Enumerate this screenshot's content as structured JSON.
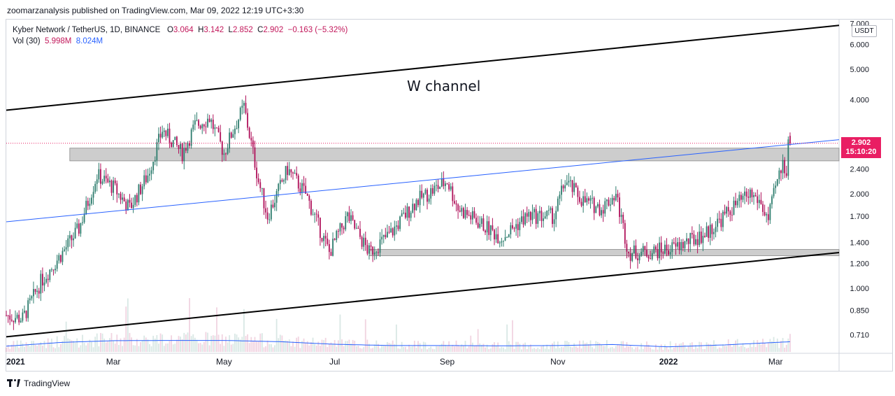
{
  "header": {
    "publish_text": "zoomarzanalysis published on TradingView.com, Mar 09, 2022 12:19 UTC+3:30"
  },
  "legend": {
    "symbol": "Kyber Network / TetherUS, 1D, BINANCE",
    "o_label": "O",
    "o_value": "3.064",
    "h_label": "H",
    "h_value": "3.142",
    "l_label": "L",
    "l_value": "2.852",
    "c_label": "C",
    "c_value": "2.902",
    "change": "−0.163 (−5.32%)",
    "vol_label": "Vol (30)",
    "vol_value": "5.998M",
    "vol_ma": "8.024M"
  },
  "price_axis": {
    "unit": "USDT",
    "last_price": "2.902",
    "countdown": "15:10:20"
  },
  "footer": {
    "brand": "TradingView"
  },
  "chart_data": {
    "type": "candlestick",
    "title": "",
    "annotation": "W channel",
    "y_scale": "log",
    "ylim": [
      0.62,
      7.2
    ],
    "y_ticks": [
      "0.710",
      "0.850",
      "1.000",
      "1.200",
      "1.400",
      "1.700",
      "2.000",
      "2.400",
      "2.900",
      "4.000",
      "5.000",
      "6.000",
      "7.000"
    ],
    "x_tick_labels": [
      "2021",
      "Mar",
      "May",
      "Jul",
      "Sep",
      "Nov",
      "2022",
      "Mar"
    ],
    "x_range": [
      "2021-01-01",
      "2022-04-05"
    ],
    "close_series": [
      {
        "date": "2021-01-01",
        "value": 0.82
      },
      {
        "date": "2021-01-10",
        "value": 0.8
      },
      {
        "date": "2021-01-20",
        "value": 1.05
      },
      {
        "date": "2021-02-01",
        "value": 1.3
      },
      {
        "date": "2021-02-10",
        "value": 1.55
      },
      {
        "date": "2021-02-20",
        "value": 2.3
      },
      {
        "date": "2021-03-01",
        "value": 2.1
      },
      {
        "date": "2021-03-10",
        "value": 1.8
      },
      {
        "date": "2021-03-20",
        "value": 2.3
      },
      {
        "date": "2021-03-28",
        "value": 3.2
      },
      {
        "date": "2021-04-08",
        "value": 2.7
      },
      {
        "date": "2021-04-15",
        "value": 3.3
      },
      {
        "date": "2021-04-23",
        "value": 3.5
      },
      {
        "date": "2021-05-01",
        "value": 2.7
      },
      {
        "date": "2021-05-05",
        "value": 3.1
      },
      {
        "date": "2021-05-12",
        "value": 3.8
      },
      {
        "date": "2021-05-20",
        "value": 2.2
      },
      {
        "date": "2021-05-25",
        "value": 1.7
      },
      {
        "date": "2021-06-05",
        "value": 2.4
      },
      {
        "date": "2021-06-15",
        "value": 2.0
      },
      {
        "date": "2021-06-28",
        "value": 1.3
      },
      {
        "date": "2021-07-08",
        "value": 1.7
      },
      {
        "date": "2021-07-20",
        "value": 1.3
      },
      {
        "date": "2021-08-01",
        "value": 1.5
      },
      {
        "date": "2021-08-15",
        "value": 1.9
      },
      {
        "date": "2021-09-01",
        "value": 2.2
      },
      {
        "date": "2021-09-07",
        "value": 1.8
      },
      {
        "date": "2021-09-20",
        "value": 1.6
      },
      {
        "date": "2021-10-01",
        "value": 1.45
      },
      {
        "date": "2021-10-15",
        "value": 1.7
      },
      {
        "date": "2021-10-30",
        "value": 1.7
      },
      {
        "date": "2021-11-05",
        "value": 2.2
      },
      {
        "date": "2021-11-15",
        "value": 1.9
      },
      {
        "date": "2021-11-25",
        "value": 1.8
      },
      {
        "date": "2021-12-03",
        "value": 2.0
      },
      {
        "date": "2021-12-10",
        "value": 1.3
      },
      {
        "date": "2021-12-20",
        "value": 1.3
      },
      {
        "date": "2022-01-05",
        "value": 1.35
      },
      {
        "date": "2022-01-22",
        "value": 1.5
      },
      {
        "date": "2022-02-05",
        "value": 1.8
      },
      {
        "date": "2022-02-15",
        "value": 2.0
      },
      {
        "date": "2022-02-20",
        "value": 1.9
      },
      {
        "date": "2022-02-25",
        "value": 1.65
      },
      {
        "date": "2022-03-01",
        "value": 2.1
      },
      {
        "date": "2022-03-05",
        "value": 2.5
      },
      {
        "date": "2022-03-07",
        "value": 2.4
      },
      {
        "date": "2022-03-08",
        "value": 3.06
      },
      {
        "date": "2022-03-09",
        "value": 2.902
      }
    ],
    "volume_ma_series": [
      {
        "date": "2021-01-01",
        "value": 4.5
      },
      {
        "date": "2021-02-01",
        "value": 7.5
      },
      {
        "date": "2021-03-01",
        "value": 8.8
      },
      {
        "date": "2021-04-01",
        "value": 9.0
      },
      {
        "date": "2021-05-01",
        "value": 9.0
      },
      {
        "date": "2021-06-01",
        "value": 8.0
      },
      {
        "date": "2021-07-01",
        "value": 6.0
      },
      {
        "date": "2021-08-01",
        "value": 5.0
      },
      {
        "date": "2021-09-01",
        "value": 5.0
      },
      {
        "date": "2021-10-01",
        "value": 4.8
      },
      {
        "date": "2021-11-01",
        "value": 5.0
      },
      {
        "date": "2021-12-01",
        "value": 5.8
      },
      {
        "date": "2022-01-01",
        "value": 4.0
      },
      {
        "date": "2022-02-01",
        "value": 5.5
      },
      {
        "date": "2022-03-09",
        "value": 8.0
      }
    ],
    "drawings": {
      "upper_channel": [
        {
          "date": "2021-01-01",
          "value": 3.7
        },
        {
          "date": "2022-04-05",
          "value": 6.9
        }
      ],
      "lower_channel": [
        {
          "date": "2021-01-01",
          "value": 0.7
        },
        {
          "date": "2022-04-05",
          "value": 1.3
        }
      ],
      "blue_trendline": [
        {
          "date": "2021-01-01",
          "value": 1.63
        },
        {
          "date": "2022-04-05",
          "value": 2.98
        }
      ],
      "resistance_zone": {
        "from": "2021-02-05",
        "to": "2022-04-05",
        "low": 2.55,
        "high": 2.8
      },
      "support_zone": {
        "from": "2021-07-20",
        "to": "2022-04-05",
        "low": 1.27,
        "high": 1.33
      }
    },
    "colors": {
      "up": "#2e7d6e",
      "down": "#b0125b",
      "trendline": "#2962ff",
      "channel": "#000000",
      "zone_fill": "#c8c8c8",
      "price_badge": "#e91e63"
    }
  }
}
